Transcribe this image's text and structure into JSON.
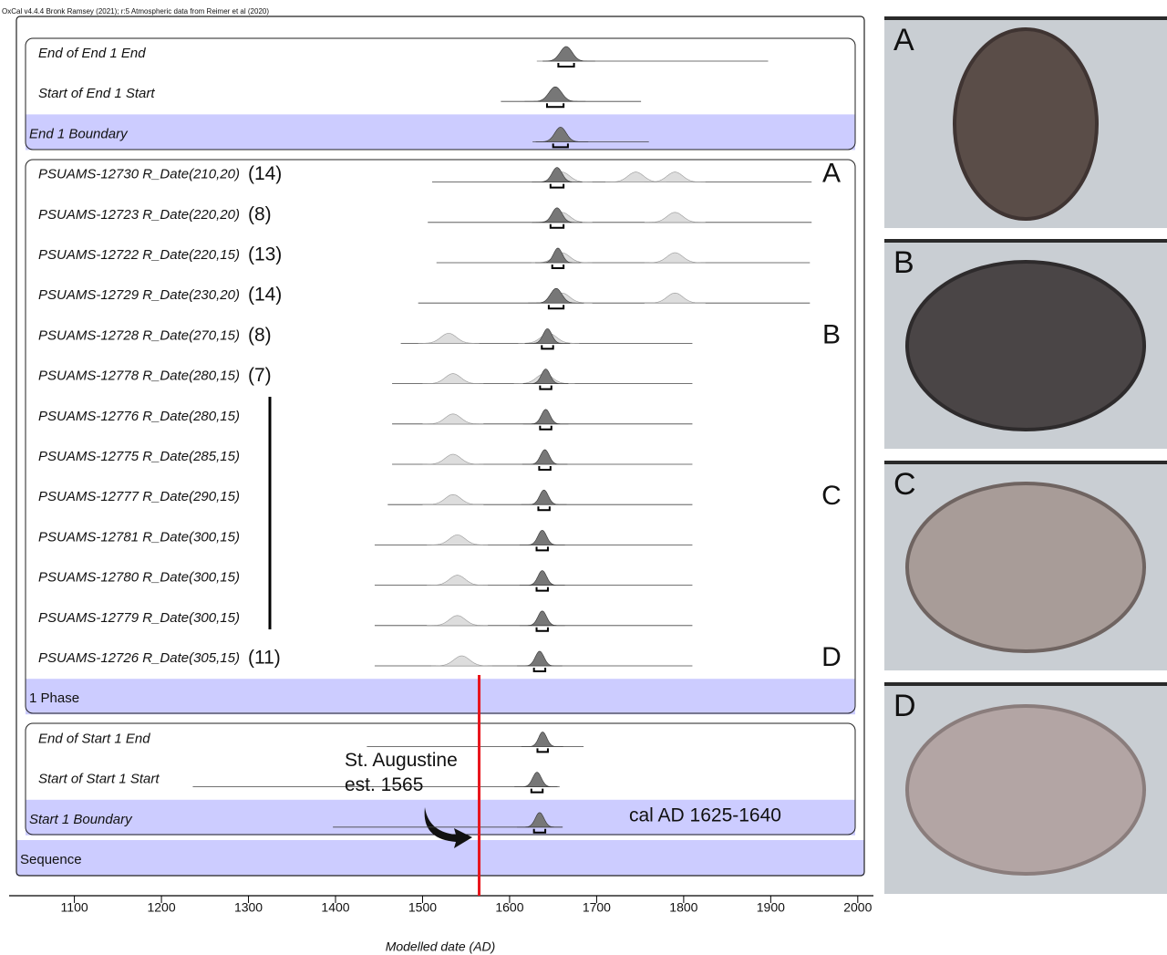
{
  "chart_data": {
    "type": "oxcal",
    "header": "OxCal v4.4.4 Bronk Ramsey (2021); r:5 Atmospheric data from Reimer et al (2020)",
    "x_label": "Modelled date (AD)",
    "xlim": [
      1025,
      2018
    ],
    "xticks": [
      1100,
      1200,
      1300,
      1400,
      1500,
      1600,
      1700,
      1800,
      1900,
      2000
    ],
    "marker_line": 1565,
    "marker_color": "#e8141b",
    "annotations": [
      "St. Augustine\nest. 1565",
      "cal AD 1625-1640"
    ],
    "rows": [
      {
        "label": "End of End 1 End",
        "kind": "date",
        "range": [
          1656,
          1674
        ],
        "extent": [
          1638,
          1897
        ],
        "prior_peaks": []
      },
      {
        "label": "Start of End 1 Start",
        "kind": "date",
        "range": [
          1643,
          1662
        ],
        "extent": [
          1590,
          1751
        ],
        "prior_peaks": []
      },
      {
        "label": "End 1 Boundary",
        "kind": "boundary",
        "range": [
          1650,
          1667
        ],
        "extent": [
          1630,
          1760
        ],
        "prior_peaks": []
      },
      {
        "label": "PSUAMS-12730 R_Date(210,20)",
        "count": "(14)",
        "letter": "A",
        "kind": "date",
        "range": [
          1647,
          1662
        ],
        "extent": [
          1511,
          1947
        ],
        "prior_peaks": [
          1660,
          1745,
          1790
        ]
      },
      {
        "label": "PSUAMS-12723 R_Date(220,20)",
        "count": "(8)",
        "kind": "date",
        "range": [
          1647,
          1662
        ],
        "extent": [
          1506,
          1947
        ],
        "prior_peaks": [
          1660,
          1790
        ]
      },
      {
        "label": "PSUAMS-12722 R_Date(220,15)",
        "count": "(13)",
        "kind": "date",
        "range": [
          1649,
          1662
        ],
        "extent": [
          1516,
          1945
        ],
        "prior_peaks": [
          1660,
          1790
        ]
      },
      {
        "label": "PSUAMS-12729 R_Date(230,20)",
        "count": "(14)",
        "kind": "date",
        "range": [
          1645,
          1662
        ],
        "extent": [
          1495,
          1945
        ],
        "prior_peaks": [
          1660,
          1790
        ]
      },
      {
        "label": "PSUAMS-12728 R_Date(270,15)",
        "count": "(8)",
        "letter": "B",
        "kind": "date",
        "range": [
          1637,
          1650
        ],
        "extent": [
          1475,
          1810
        ],
        "prior_peaks": [
          1530,
          1645
        ]
      },
      {
        "label": "PSUAMS-12778 R_Date(280,15)",
        "count": "(7)",
        "kind": "date",
        "range": [
          1635,
          1648
        ],
        "extent": [
          1465,
          1810
        ],
        "prior_peaks": [
          1535,
          1640
        ]
      },
      {
        "label": "PSUAMS-12776 R_Date(280,15)",
        "kind": "date",
        "range": [
          1635,
          1648
        ],
        "extent": [
          1465,
          1810
        ],
        "prior_peaks": [
          1535
        ]
      },
      {
        "label": "PSUAMS-12775 R_Date(285,15)",
        "kind": "date",
        "range": [
          1634,
          1647
        ],
        "extent": [
          1465,
          1810
        ],
        "prior_peaks": [
          1535
        ]
      },
      {
        "label": "PSUAMS-12777 R_Date(290,15)",
        "letter": "C",
        "kind": "date",
        "range": [
          1633,
          1646
        ],
        "extent": [
          1460,
          1810
        ],
        "prior_peaks": [
          1535
        ]
      },
      {
        "label": "PSUAMS-12781 R_Date(300,15)",
        "kind": "date",
        "range": [
          1631,
          1644
        ],
        "extent": [
          1445,
          1810
        ],
        "prior_peaks": [
          1540
        ]
      },
      {
        "label": "PSUAMS-12780 R_Date(300,15)",
        "kind": "date",
        "range": [
          1631,
          1644
        ],
        "extent": [
          1445,
          1810
        ],
        "prior_peaks": [
          1540
        ]
      },
      {
        "label": "PSUAMS-12779 R_Date(300,15)",
        "kind": "date",
        "range": [
          1631,
          1644
        ],
        "extent": [
          1445,
          1810
        ],
        "prior_peaks": [
          1540
        ]
      },
      {
        "label": "PSUAMS-12726 R_Date(305,15)",
        "count": "(11)",
        "letter": "D",
        "kind": "date",
        "range": [
          1628,
          1641
        ],
        "extent": [
          1445,
          1810
        ],
        "prior_peaks": [
          1545
        ]
      },
      {
        "label": "1 Phase",
        "kind": "phase"
      },
      {
        "label": "End of Start 1 End",
        "kind": "date",
        "range": [
          1632,
          1644
        ],
        "extent": [
          1436,
          1685
        ],
        "prior_peaks": []
      },
      {
        "label": "Start of Start 1 Start",
        "kind": "date",
        "range": [
          1625,
          1638
        ],
        "extent": [
          1236,
          1655
        ],
        "prior_peaks": []
      },
      {
        "label": "Start 1 Boundary",
        "kind": "boundary",
        "range": [
          1628,
          1641
        ],
        "extent": [
          1397,
          1661
        ],
        "prior_peaks": []
      },
      {
        "label": "Sequence",
        "kind": "sequence"
      }
    ],
    "photos": [
      "A",
      "B",
      "C",
      "D"
    ]
  }
}
